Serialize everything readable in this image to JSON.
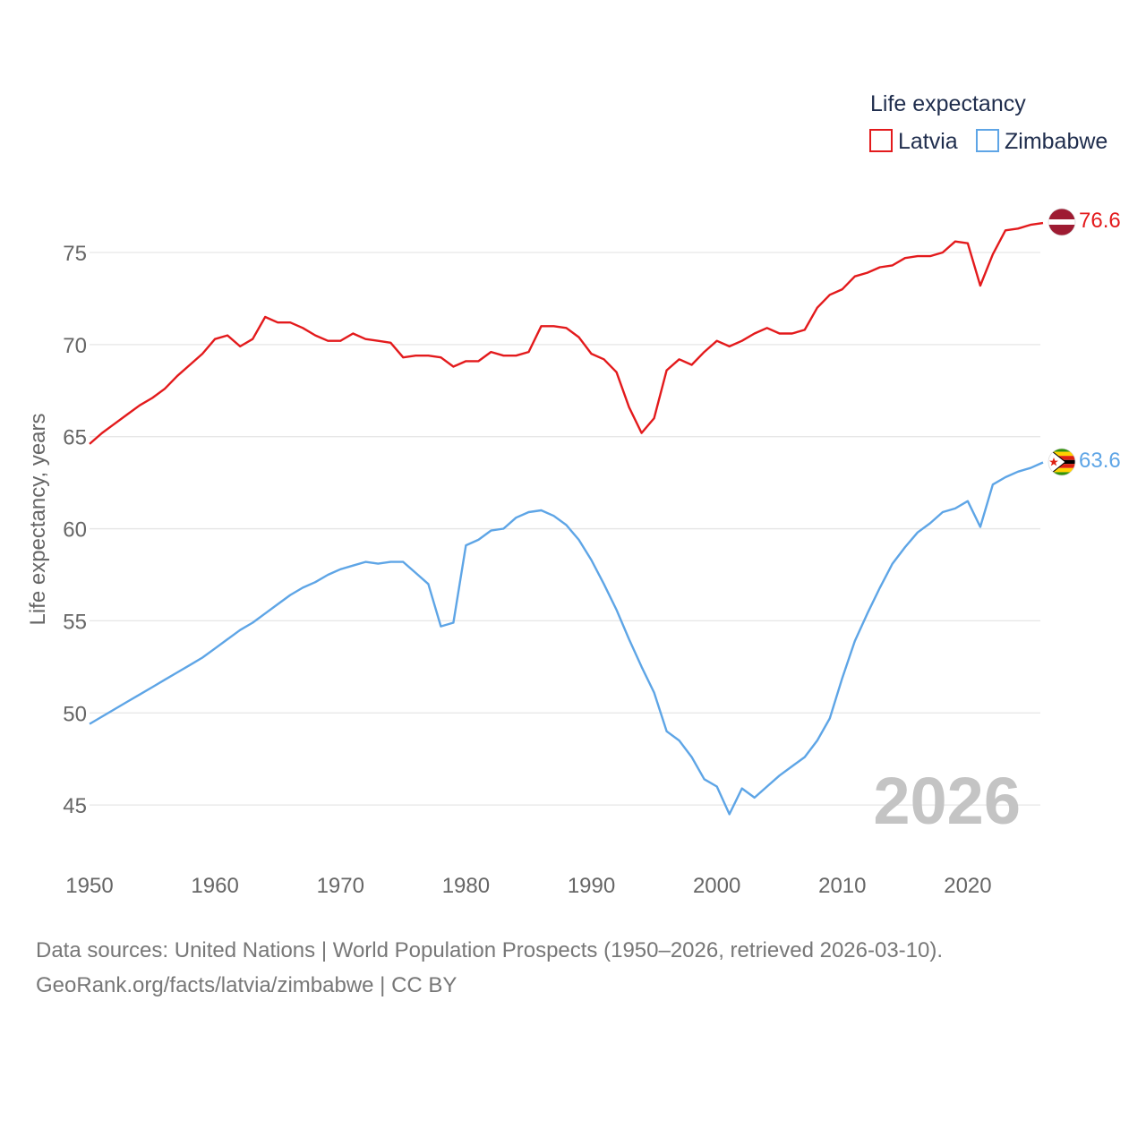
{
  "chart_data": {
    "type": "line",
    "legend_title": "Life expectancy",
    "ylabel": "Life expectancy, years",
    "xlim": [
      1950,
      2026
    ],
    "ylim": [
      43,
      78
    ],
    "yticks": [
      45,
      50,
      55,
      60,
      65,
      70,
      75
    ],
    "xticks": [
      1950,
      1960,
      1970,
      1980,
      1990,
      2000,
      2010,
      2020
    ],
    "year_label": "2026",
    "legend_position": "top-right",
    "series": [
      {
        "name": "Latvia",
        "color": "#e31a1c",
        "end_label": "76.6",
        "flag_icon": "latvia-flag-icon",
        "x": [
          1950,
          1951,
          1952,
          1953,
          1954,
          1955,
          1956,
          1957,
          1958,
          1959,
          1960,
          1961,
          1962,
          1963,
          1964,
          1965,
          1966,
          1967,
          1968,
          1969,
          1970,
          1971,
          1972,
          1973,
          1974,
          1975,
          1976,
          1977,
          1978,
          1979,
          1980,
          1981,
          1982,
          1983,
          1984,
          1985,
          1986,
          1987,
          1988,
          1989,
          1990,
          1991,
          1992,
          1993,
          1994,
          1995,
          1996,
          1997,
          1998,
          1999,
          2000,
          2001,
          2002,
          2003,
          2004,
          2005,
          2006,
          2007,
          2008,
          2009,
          2010,
          2011,
          2012,
          2013,
          2014,
          2015,
          2016,
          2017,
          2018,
          2019,
          2020,
          2021,
          2022,
          2023,
          2024,
          2025,
          2026
        ],
        "values": [
          64.6,
          65.2,
          65.7,
          66.2,
          66.7,
          67.1,
          67.6,
          68.3,
          68.9,
          69.5,
          70.3,
          70.5,
          69.9,
          70.3,
          71.5,
          71.2,
          71.2,
          70.9,
          70.5,
          70.2,
          70.2,
          70.6,
          70.3,
          70.2,
          70.1,
          69.3,
          69.4,
          69.4,
          69.3,
          68.8,
          69.1,
          69.1,
          69.6,
          69.4,
          69.4,
          69.6,
          71.0,
          71.0,
          70.9,
          70.4,
          69.5,
          69.2,
          68.5,
          66.6,
          65.2,
          66.0,
          68.6,
          69.2,
          68.9,
          69.6,
          70.2,
          69.9,
          70.2,
          70.6,
          70.9,
          70.6,
          70.6,
          70.8,
          72.0,
          72.7,
          73.0,
          73.7,
          73.9,
          74.2,
          74.3,
          74.7,
          74.8,
          74.8,
          75.0,
          75.6,
          75.5,
          73.2,
          74.9,
          76.2,
          76.3,
          76.5,
          76.6
        ]
      },
      {
        "name": "Zimbabwe",
        "color": "#5ea5e6",
        "end_label": "63.6",
        "flag_icon": "zimbabwe-flag-icon",
        "x": [
          1950,
          1951,
          1952,
          1953,
          1954,
          1955,
          1956,
          1957,
          1958,
          1959,
          1960,
          1961,
          1962,
          1963,
          1964,
          1965,
          1966,
          1967,
          1968,
          1969,
          1970,
          1971,
          1972,
          1973,
          1974,
          1975,
          1976,
          1977,
          1978,
          1979,
          1980,
          1981,
          1982,
          1983,
          1984,
          1985,
          1986,
          1987,
          1988,
          1989,
          1990,
          1991,
          1992,
          1993,
          1994,
          1995,
          1996,
          1997,
          1998,
          1999,
          2000,
          2001,
          2002,
          2003,
          2004,
          2005,
          2006,
          2007,
          2008,
          2009,
          2010,
          2011,
          2012,
          2013,
          2014,
          2015,
          2016,
          2017,
          2018,
          2019,
          2020,
          2021,
          2022,
          2023,
          2024,
          2025,
          2026
        ],
        "values": [
          49.4,
          49.8,
          50.2,
          50.6,
          51.0,
          51.4,
          51.8,
          52.2,
          52.6,
          53.0,
          53.5,
          54.0,
          54.5,
          54.9,
          55.4,
          55.9,
          56.4,
          56.8,
          57.1,
          57.5,
          57.8,
          58.0,
          58.2,
          58.1,
          58.2,
          58.2,
          57.6,
          57.0,
          54.7,
          54.9,
          59.1,
          59.4,
          59.9,
          60.0,
          60.6,
          60.9,
          61.0,
          60.7,
          60.2,
          59.4,
          58.3,
          57.0,
          55.6,
          54.0,
          52.5,
          51.1,
          49.0,
          48.5,
          47.6,
          46.4,
          46.0,
          44.5,
          45.9,
          45.4,
          46.0,
          46.6,
          47.1,
          47.6,
          48.5,
          49.7,
          51.9,
          53.9,
          55.4,
          56.8,
          58.1,
          59.0,
          59.8,
          60.3,
          60.9,
          61.1,
          61.5,
          60.1,
          62.4,
          62.8,
          63.1,
          63.3,
          63.6
        ]
      }
    ]
  },
  "footer": {
    "line1": "Data sources: United Nations | World Population Prospects (1950–2026, retrieved 2026-03-10).",
    "line2": "GeoRank.org/facts/latvia/zimbabwe | CC BY"
  }
}
